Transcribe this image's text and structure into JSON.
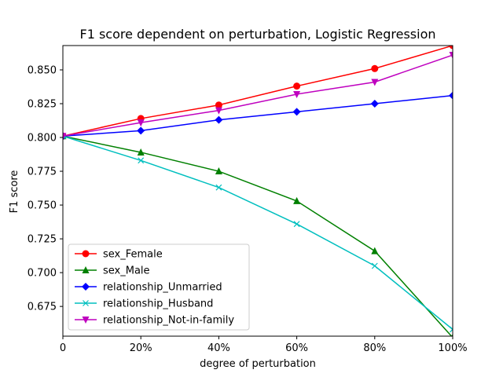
{
  "chart_data": {
    "type": "line",
    "title": "F1 score dependent on perturbation, Logistic Regression",
    "xlabel": "degree of perturbation",
    "ylabel": "F1 score",
    "categories": [
      "0",
      "20%",
      "40%",
      "60%",
      "80%",
      "100%"
    ],
    "x": [
      0,
      20,
      40,
      60,
      80,
      100
    ],
    "xlim": [
      0,
      100
    ],
    "ylim": [
      0.653,
      0.868
    ],
    "yticks": [
      0.675,
      0.7,
      0.725,
      0.75,
      0.775,
      0.8,
      0.825,
      0.85
    ],
    "ytick_labels": [
      "0.675",
      "0.700",
      "0.725",
      "0.750",
      "0.775",
      "0.800",
      "0.825",
      "0.850"
    ],
    "grid": false,
    "legend_position": "lower-left",
    "series": [
      {
        "name": "sex_Female",
        "color": "#ff0000",
        "marker": "circle",
        "values": [
          0.801,
          0.814,
          0.824,
          0.838,
          0.851,
          0.868
        ]
      },
      {
        "name": "sex_Male",
        "color": "#008000",
        "marker": "triangle-up",
        "values": [
          0.801,
          0.789,
          0.775,
          0.753,
          0.716,
          0.652
        ]
      },
      {
        "name": "relationship_Unmarried",
        "color": "#0000ff",
        "marker": "diamond",
        "values": [
          0.801,
          0.805,
          0.813,
          0.819,
          0.825,
          0.831
        ]
      },
      {
        "name": "relationship_Husband",
        "color": "#00bfbf",
        "marker": "x",
        "values": [
          0.801,
          0.783,
          0.763,
          0.736,
          0.705,
          0.658
        ]
      },
      {
        "name": "relationship_Not-in-family",
        "color": "#bf00bf",
        "marker": "triangle-down",
        "values": [
          0.801,
          0.811,
          0.82,
          0.832,
          0.841,
          0.861
        ]
      }
    ]
  }
}
